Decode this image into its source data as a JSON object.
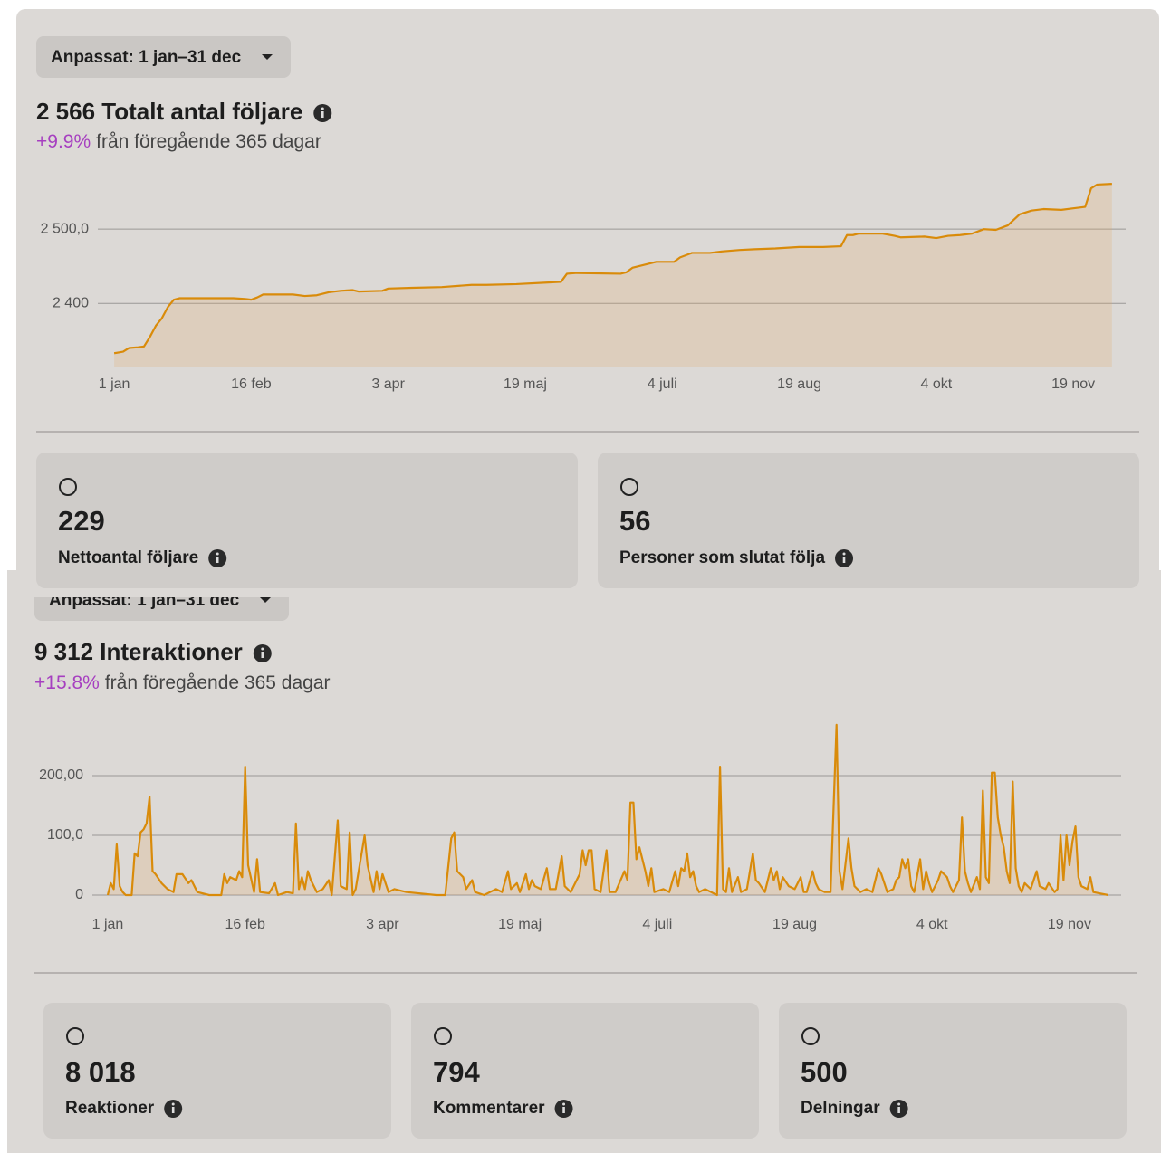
{
  "sections": [
    {
      "filter": "Anpassat: 1 jan–31 dec",
      "headline": "2 566 Totalt antal följare",
      "change": "+9.9%",
      "change_note": "från föregående 365 dagar",
      "cards": [
        {
          "value": "229",
          "label": "Nettoantal följare"
        },
        {
          "value": "56",
          "label": "Personer som slutat följa"
        }
      ]
    },
    {
      "filter": "Anpassat: 1 jan–31 dec",
      "headline": "9 312 Interaktioner",
      "change": "+15.8%",
      "change_note": "från föregående 365 dagar",
      "cards": [
        {
          "value": "8 018",
          "label": "Reaktioner"
        },
        {
          "value": "794",
          "label": "Kommentarer"
        },
        {
          "value": "500",
          "label": "Delningar"
        }
      ]
    }
  ],
  "chart_data": [
    {
      "type": "area",
      "color": "#d98b0a",
      "grid": true,
      "xlim": [
        -5.5,
        339.6
      ],
      "ylim": [
        2315,
        2577
      ],
      "xticks": [
        {
          "value": 0,
          "label": "1 jan"
        },
        {
          "value": 46,
          "label": "16 feb"
        },
        {
          "value": 92,
          "label": "3 apr"
        },
        {
          "value": 138,
          "label": "19 maj"
        },
        {
          "value": 184,
          "label": "4 juli"
        },
        {
          "value": 230,
          "label": "19 aug"
        },
        {
          "value": 276,
          "label": "4 okt"
        },
        {
          "value": 322,
          "label": "19 nov"
        }
      ],
      "yticks": [
        {
          "value": 2400,
          "label": "2 400"
        },
        {
          "value": 2500,
          "label": "2 500,0"
        }
      ],
      "x": [
        0,
        3,
        5,
        8,
        10,
        12,
        14,
        16,
        18,
        20,
        22,
        30,
        40,
        44,
        46,
        48,
        50,
        60,
        64,
        68,
        72,
        76,
        80,
        82,
        90,
        92,
        100,
        110,
        120,
        125,
        135,
        145,
        150,
        152,
        155,
        170,
        172,
        174,
        178,
        182,
        188,
        190,
        194,
        200,
        204,
        210,
        215,
        222,
        230,
        238,
        244,
        246,
        248,
        250,
        258,
        262,
        264,
        272,
        276,
        280,
        284,
        288,
        292,
        296,
        300,
        304,
        308,
        312,
        318,
        322,
        326,
        328,
        330,
        335
      ],
      "values": [
        2333,
        2335,
        2340,
        2341,
        2342,
        2355,
        2370,
        2380,
        2395,
        2405,
        2407,
        2407,
        2407,
        2406,
        2405,
        2408,
        2412,
        2412,
        2410,
        2411,
        2415,
        2417,
        2418,
        2416,
        2417,
        2420,
        2421,
        2422,
        2425,
        2425,
        2426,
        2428,
        2429,
        2440,
        2441,
        2440,
        2442,
        2448,
        2452,
        2456,
        2456,
        2462,
        2468,
        2468,
        2470,
        2472,
        2473,
        2474,
        2476,
        2476,
        2477,
        2492,
        2492,
        2494,
        2494,
        2491,
        2489,
        2490,
        2488,
        2491,
        2492,
        2494,
        2500,
        2499,
        2505,
        2520,
        2525,
        2527,
        2526,
        2528,
        2530,
        2555,
        2560,
        2561
      ]
    },
    {
      "type": "area",
      "color": "#d98b0a",
      "grid": true,
      "xlim": [
        -5.15,
        339.3
      ],
      "ylim": [
        0,
        290
      ],
      "xticks": [
        {
          "value": 0,
          "label": "1 jan"
        },
        {
          "value": 46,
          "label": "16 feb"
        },
        {
          "value": 92,
          "label": "3 apr"
        },
        {
          "value": 138,
          "label": "19 maj"
        },
        {
          "value": 184,
          "label": "4 juli"
        },
        {
          "value": 230,
          "label": "19 aug"
        },
        {
          "value": 276,
          "label": "4 okt"
        },
        {
          "value": 322,
          "label": "19 nov"
        }
      ],
      "yticks": [
        0,
        {
          "value": 100,
          "label": "100,0"
        },
        {
          "value": 200,
          "label": "200,00"
        }
      ],
      "x": [
        0,
        1,
        2,
        3,
        4,
        5,
        6,
        8,
        9,
        10,
        11,
        12,
        13,
        14,
        15,
        16,
        18,
        20,
        22,
        23,
        25,
        27,
        28,
        30,
        34,
        38,
        39,
        40,
        41,
        43,
        44,
        45,
        46,
        47,
        49,
        50,
        51,
        54,
        56,
        57,
        60,
        62,
        63,
        64,
        65,
        66,
        67,
        68,
        70,
        72,
        74,
        75,
        77,
        78,
        80,
        81,
        82,
        83,
        86,
        87,
        89,
        90,
        91,
        92,
        94,
        96,
        100,
        110,
        113,
        115,
        116,
        117,
        119,
        120,
        122,
        123,
        126,
        128,
        130,
        132,
        134,
        135,
        137,
        138,
        140,
        141,
        142,
        143,
        145,
        147,
        148,
        150,
        152,
        153,
        155,
        157,
        158,
        159,
        160,
        161,
        162,
        163,
        165,
        167,
        168,
        170,
        173,
        174,
        175,
        176,
        177,
        178,
        179,
        180,
        181,
        182,
        183,
        186,
        188,
        190,
        191,
        192,
        193,
        194,
        195,
        196,
        197,
        198,
        200,
        202,
        204,
        205,
        206,
        207,
        208,
        209,
        211,
        212,
        214,
        216,
        217,
        218,
        220,
        222,
        223,
        224,
        225,
        226,
        228,
        230,
        232,
        233,
        234,
        236,
        237,
        238,
        240,
        242,
        244,
        245,
        246,
        248,
        249,
        250,
        252,
        254,
        256,
        258,
        259,
        261,
        263,
        264,
        265,
        266,
        267,
        268,
        269,
        270,
        272,
        273,
        274,
        275,
        276,
        278,
        279,
        281,
        282,
        283,
        285,
        286,
        287,
        288,
        289,
        291,
        292,
        293,
        294,
        295,
        296,
        297,
        298,
        299,
        300,
        301,
        302,
        303,
        304,
        305,
        306,
        307,
        309,
        311,
        312,
        314,
        315,
        317,
        318,
        319,
        320,
        321,
        322,
        323,
        324,
        325,
        326,
        328,
        329,
        330,
        332,
        335
      ],
      "values": [
        0,
        20,
        10,
        85,
        15,
        5,
        0,
        0,
        70,
        65,
        105,
        110,
        120,
        165,
        40,
        35,
        20,
        10,
        5,
        35,
        35,
        20,
        25,
        5,
        0,
        0,
        35,
        20,
        30,
        25,
        40,
        30,
        215,
        50,
        5,
        60,
        5,
        3,
        20,
        0,
        5,
        3,
        120,
        10,
        30,
        10,
        40,
        25,
        5,
        10,
        25,
        0,
        125,
        15,
        10,
        105,
        0,
        10,
        100,
        50,
        5,
        40,
        10,
        35,
        5,
        10,
        5,
        0,
        0,
        95,
        105,
        40,
        30,
        10,
        25,
        5,
        0,
        5,
        10,
        5,
        40,
        10,
        20,
        5,
        35,
        10,
        25,
        15,
        10,
        45,
        10,
        10,
        65,
        15,
        5,
        25,
        35,
        75,
        50,
        75,
        75,
        10,
        5,
        75,
        5,
        5,
        40,
        25,
        155,
        155,
        60,
        80,
        60,
        40,
        15,
        45,
        5,
        10,
        5,
        40,
        15,
        45,
        40,
        70,
        30,
        40,
        15,
        5,
        10,
        5,
        0,
        215,
        10,
        5,
        45,
        5,
        30,
        5,
        10,
        70,
        25,
        20,
        5,
        45,
        25,
        40,
        10,
        30,
        15,
        10,
        30,
        5,
        5,
        40,
        20,
        10,
        5,
        5,
        285,
        40,
        10,
        95,
        45,
        15,
        5,
        10,
        5,
        45,
        35,
        5,
        10,
        25,
        30,
        60,
        45,
        60,
        15,
        5,
        60,
        10,
        40,
        20,
        5,
        25,
        40,
        30,
        15,
        5,
        25,
        130,
        40,
        20,
        5,
        30,
        10,
        175,
        30,
        20,
        205,
        205,
        130,
        100,
        80,
        40,
        20,
        190,
        45,
        15,
        5,
        20,
        10,
        40,
        15,
        10,
        20,
        5,
        10,
        100,
        25,
        100,
        50,
        90,
        115,
        30,
        15,
        10,
        30,
        5,
        3,
        0
      ]
    }
  ]
}
